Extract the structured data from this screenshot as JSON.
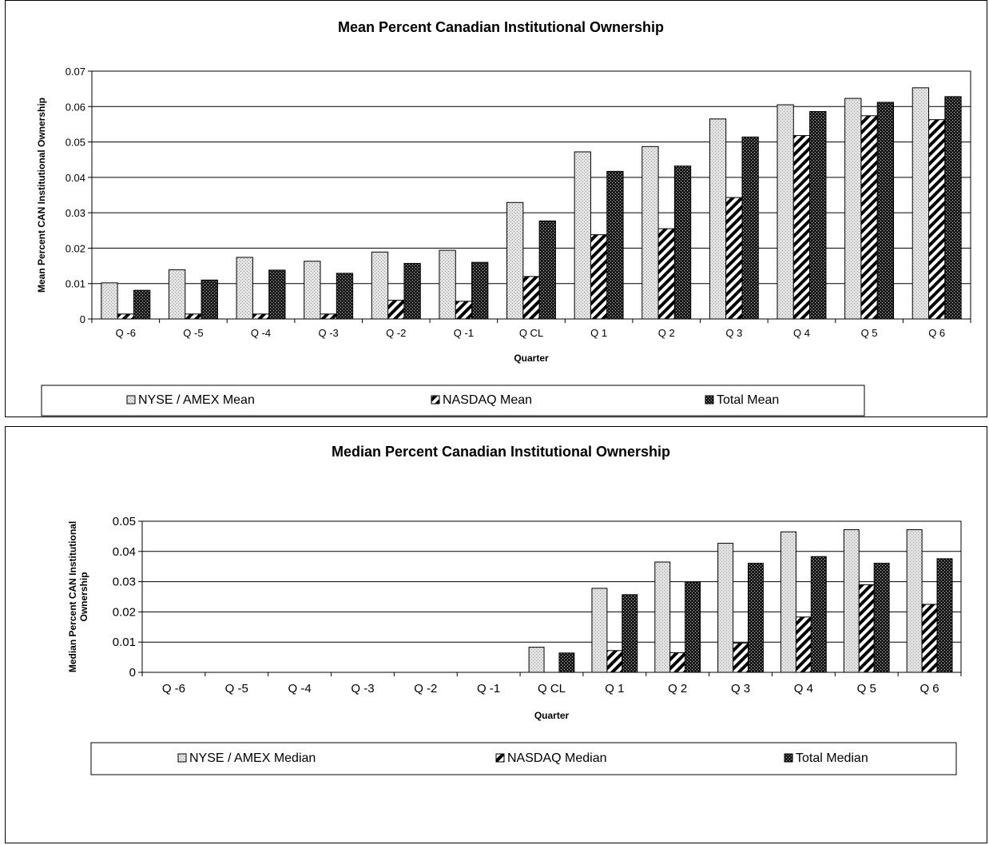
{
  "chart_data": [
    {
      "type": "bar",
      "title": "Mean Percent Canadian Institutional Ownership",
      "xlabel": "Quarter",
      "ylabel": "Mean Percent CAN Institutional Ownership",
      "ylim": [
        0,
        0.07
      ],
      "yticks": [
        "0",
        "0.01",
        "0.02",
        "0.03",
        "0.04",
        "0.05",
        "0.06",
        "0.07"
      ],
      "grid": true,
      "legend_position": "bottom",
      "categories": [
        "Q -6",
        "Q -5",
        "Q -4",
        "Q -3",
        "Q -2",
        "Q -1",
        "Q CL",
        "Q 1",
        "Q 2",
        "Q 3",
        "Q 4",
        "Q 5",
        "Q 6"
      ],
      "series": [
        {
          "name": "NYSE / AMEX Mean",
          "pattern": "dotted-light",
          "values": [
            0.0102,
            0.0139,
            0.0174,
            0.0163,
            0.0189,
            0.0194,
            0.0329,
            0.0472,
            0.0487,
            0.0565,
            0.0605,
            0.0623,
            0.0653
          ]
        },
        {
          "name": "NASDAQ Mean",
          "pattern": "diagonal-stripes",
          "values": [
            0.0014,
            0.0014,
            0.0014,
            0.0014,
            0.0053,
            0.005,
            0.012,
            0.0238,
            0.0255,
            0.0343,
            0.0518,
            0.0574,
            0.0563
          ]
        },
        {
          "name": "Total Mean",
          "pattern": "dotted-dark",
          "values": [
            0.0081,
            0.011,
            0.0138,
            0.0129,
            0.0157,
            0.016,
            0.0277,
            0.0417,
            0.0432,
            0.0514,
            0.0586,
            0.0612,
            0.0628
          ]
        }
      ]
    },
    {
      "type": "bar",
      "title": "Median Percent Canadian Institutional Ownership",
      "xlabel": "Quarter",
      "ylabel": "Median Percent CAN Institutional Ownership",
      "ylim": [
        0,
        0.05
      ],
      "yticks": [
        "0",
        "0.01",
        "0.02",
        "0.03",
        "0.04",
        "0.05"
      ],
      "grid": true,
      "legend_position": "bottom",
      "categories": [
        "Q -6",
        "Q -5",
        "Q -4",
        "Q -3",
        "Q -2",
        "Q -1",
        "Q CL",
        "Q 1",
        "Q 2",
        "Q 3",
        "Q 4",
        "Q 5",
        "Q 6"
      ],
      "series": [
        {
          "name": "NYSE / AMEX Median",
          "pattern": "dotted-light",
          "values": [
            0,
            0,
            0,
            0,
            0,
            0,
            0.0083,
            0.0278,
            0.0365,
            0.0427,
            0.0465,
            0.0472,
            0.0472
          ]
        },
        {
          "name": "NASDAQ Median",
          "pattern": "diagonal-stripes",
          "values": [
            0,
            0,
            0,
            0,
            0,
            0,
            0,
            0.0072,
            0.0065,
            0.0097,
            0.0183,
            0.029,
            0.0225
          ]
        },
        {
          "name": "Total Median",
          "pattern": "dotted-dark",
          "values": [
            0,
            0,
            0,
            0,
            0,
            0,
            0.0064,
            0.0257,
            0.0299,
            0.0361,
            0.0383,
            0.0361,
            0.0376
          ]
        }
      ]
    }
  ]
}
